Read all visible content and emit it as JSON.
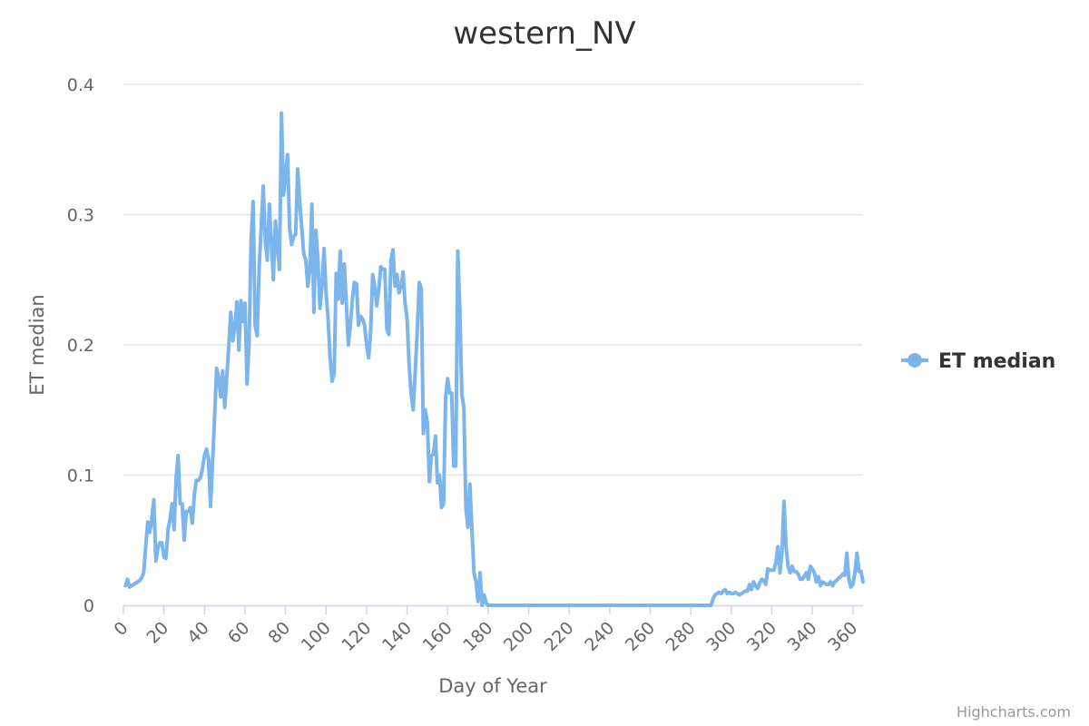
{
  "chart_data": {
    "type": "line",
    "title": "western_NV",
    "xlabel": "Day of Year",
    "ylabel": "ET median",
    "xlim": [
      0,
      365
    ],
    "ylim": [
      0,
      0.4
    ],
    "x_ticks": [
      0,
      20,
      40,
      60,
      80,
      100,
      120,
      140,
      160,
      180,
      200,
      220,
      240,
      260,
      280,
      300,
      320,
      340,
      360
    ],
    "y_ticks": [
      0,
      0.1,
      0.2,
      0.3,
      0.4
    ],
    "y_tick_labels": [
      "0",
      "0.1",
      "0.2",
      "0.3",
      "0.4"
    ],
    "grid": "horizontal",
    "legend": "right",
    "credits": "Highcharts.com",
    "color": "#7cb5ec",
    "series": [
      {
        "name": "ET median",
        "points": [
          [
            1,
            0.015
          ],
          [
            2,
            0.02
          ],
          [
            3,
            0.014
          ],
          [
            4,
            0.015
          ],
          [
            5,
            0.016
          ],
          [
            6,
            0.017
          ],
          [
            7,
            0.018
          ],
          [
            8,
            0.019
          ],
          [
            9,
            0.021
          ],
          [
            10,
            0.025
          ],
          [
            11,
            0.045
          ],
          [
            12,
            0.064
          ],
          [
            13,
            0.056
          ],
          [
            14,
            0.066
          ],
          [
            15,
            0.081
          ],
          [
            16,
            0.034
          ],
          [
            17,
            0.044
          ],
          [
            18,
            0.048
          ],
          [
            19,
            0.048
          ],
          [
            20,
            0.037
          ],
          [
            21,
            0.036
          ],
          [
            22,
            0.058
          ],
          [
            23,
            0.066
          ],
          [
            24,
            0.078
          ],
          [
            25,
            0.058
          ],
          [
            26,
            0.098
          ],
          [
            27,
            0.115
          ],
          [
            28,
            0.078
          ],
          [
            29,
            0.078
          ],
          [
            30,
            0.05
          ],
          [
            31,
            0.072
          ],
          [
            32,
            0.072
          ],
          [
            33,
            0.075
          ],
          [
            34,
            0.063
          ],
          [
            35,
            0.085
          ],
          [
            36,
            0.096
          ],
          [
            37,
            0.096
          ],
          [
            38,
            0.098
          ],
          [
            39,
            0.105
          ],
          [
            40,
            0.115
          ],
          [
            41,
            0.12
          ],
          [
            42,
            0.112
          ],
          [
            43,
            0.076
          ],
          [
            44,
            0.11
          ],
          [
            45,
            0.145
          ],
          [
            46,
            0.182
          ],
          [
            47,
            0.175
          ],
          [
            48,
            0.16
          ],
          [
            49,
            0.18
          ],
          [
            50,
            0.152
          ],
          [
            51,
            0.175
          ],
          [
            52,
            0.2
          ],
          [
            53,
            0.225
          ],
          [
            54,
            0.203
          ],
          [
            55,
            0.215
          ],
          [
            56,
            0.233
          ],
          [
            57,
            0.196
          ],
          [
            58,
            0.234
          ],
          [
            59,
            0.218
          ],
          [
            60,
            0.232
          ],
          [
            61,
            0.17
          ],
          [
            62,
            0.2
          ],
          [
            63,
            0.28
          ],
          [
            64,
            0.31
          ],
          [
            65,
            0.215
          ],
          [
            66,
            0.207
          ],
          [
            67,
            0.26
          ],
          [
            68,
            0.29
          ],
          [
            69,
            0.322
          ],
          [
            70,
            0.28
          ],
          [
            71,
            0.265
          ],
          [
            72,
            0.308
          ],
          [
            73,
            0.28
          ],
          [
            74,
            0.25
          ],
          [
            75,
            0.295
          ],
          [
            76,
            0.275
          ],
          [
            77,
            0.258
          ],
          [
            78,
            0.378
          ],
          [
            79,
            0.315
          ],
          [
            80,
            0.33
          ],
          [
            81,
            0.346
          ],
          [
            82,
            0.29
          ],
          [
            83,
            0.277
          ],
          [
            84,
            0.283
          ],
          [
            85,
            0.285
          ],
          [
            86,
            0.335
          ],
          [
            87,
            0.31
          ],
          [
            88,
            0.29
          ],
          [
            89,
            0.27
          ],
          [
            90,
            0.265
          ],
          [
            91,
            0.245
          ],
          [
            92,
            0.258
          ],
          [
            93,
            0.308
          ],
          [
            94,
            0.225
          ],
          [
            95,
            0.288
          ],
          [
            96,
            0.265
          ],
          [
            97,
            0.228
          ],
          [
            98,
            0.245
          ],
          [
            99,
            0.274
          ],
          [
            100,
            0.24
          ],
          [
            101,
            0.22
          ],
          [
            102,
            0.19
          ],
          [
            103,
            0.172
          ],
          [
            104,
            0.178
          ],
          [
            105,
            0.255
          ],
          [
            106,
            0.235
          ],
          [
            107,
            0.272
          ],
          [
            108,
            0.232
          ],
          [
            109,
            0.262
          ],
          [
            110,
            0.232
          ],
          [
            111,
            0.2
          ],
          [
            112,
            0.215
          ],
          [
            113,
            0.235
          ],
          [
            114,
            0.248
          ],
          [
            115,
            0.247
          ],
          [
            116,
            0.215
          ],
          [
            117,
            0.222
          ],
          [
            118,
            0.22
          ],
          [
            119,
            0.215
          ],
          [
            120,
            0.2
          ],
          [
            121,
            0.19
          ],
          [
            122,
            0.21
          ],
          [
            123,
            0.254
          ],
          [
            124,
            0.245
          ],
          [
            125,
            0.23
          ],
          [
            126,
            0.242
          ],
          [
            127,
            0.26
          ],
          [
            128,
            0.258
          ],
          [
            129,
            0.258
          ],
          [
            130,
            0.212
          ],
          [
            131,
            0.208
          ],
          [
            132,
            0.265
          ],
          [
            133,
            0.273
          ],
          [
            134,
            0.245
          ],
          [
            135,
            0.254
          ],
          [
            136,
            0.24
          ],
          [
            137,
            0.245
          ],
          [
            138,
            0.256
          ],
          [
            139,
            0.232
          ],
          [
            140,
            0.22
          ],
          [
            141,
            0.185
          ],
          [
            142,
            0.162
          ],
          [
            143,
            0.15
          ],
          [
            144,
            0.18
          ],
          [
            145,
            0.21
          ],
          [
            146,
            0.248
          ],
          [
            147,
            0.243
          ],
          [
            148,
            0.132
          ],
          [
            149,
            0.15
          ],
          [
            150,
            0.14
          ],
          [
            151,
            0.095
          ],
          [
            152,
            0.115
          ],
          [
            153,
            0.116
          ],
          [
            154,
            0.13
          ],
          [
            155,
            0.094
          ],
          [
            156,
            0.1
          ],
          [
            157,
            0.075
          ],
          [
            158,
            0.078
          ],
          [
            159,
            0.16
          ],
          [
            160,
            0.174
          ],
          [
            161,
            0.163
          ],
          [
            162,
            0.163
          ],
          [
            163,
            0.107
          ],
          [
            164,
            0.107
          ],
          [
            165,
            0.272
          ],
          [
            166,
            0.228
          ],
          [
            167,
            0.162
          ],
          [
            168,
            0.152
          ],
          [
            169,
            0.075
          ],
          [
            170,
            0.06
          ],
          [
            171,
            0.093
          ],
          [
            172,
            0.058
          ],
          [
            173,
            0.025
          ],
          [
            174,
            0.018
          ],
          [
            175,
            0.003
          ],
          [
            176,
            0.025
          ],
          [
            177,
            0.0
          ],
          [
            178,
            0.008
          ],
          [
            179,
            0.002
          ],
          [
            180,
            0.0
          ],
          [
            185,
            0.0
          ],
          [
            190,
            0.0
          ],
          [
            200,
            0.0
          ],
          [
            210,
            0.0
          ],
          [
            220,
            0.0
          ],
          [
            230,
            0.0
          ],
          [
            240,
            0.0
          ],
          [
            250,
            0.0
          ],
          [
            260,
            0.0
          ],
          [
            270,
            0.0
          ],
          [
            280,
            0.0
          ],
          [
            290,
            0.0
          ],
          [
            291,
            0.005
          ],
          [
            292,
            0.008
          ],
          [
            293,
            0.009
          ],
          [
            294,
            0.01
          ],
          [
            295,
            0.009
          ],
          [
            296,
            0.011
          ],
          [
            297,
            0.012
          ],
          [
            298,
            0.009
          ],
          [
            299,
            0.01
          ],
          [
            300,
            0.009
          ],
          [
            301,
            0.009
          ],
          [
            302,
            0.01
          ],
          [
            303,
            0.009
          ],
          [
            304,
            0.008
          ],
          [
            305,
            0.009
          ],
          [
            306,
            0.01
          ],
          [
            307,
            0.011
          ],
          [
            308,
            0.011
          ],
          [
            309,
            0.016
          ],
          [
            310,
            0.012
          ],
          [
            311,
            0.018
          ],
          [
            312,
            0.015
          ],
          [
            313,
            0.013
          ],
          [
            314,
            0.017
          ],
          [
            315,
            0.02
          ],
          [
            316,
            0.019
          ],
          [
            317,
            0.016
          ],
          [
            318,
            0.028
          ],
          [
            319,
            0.027
          ],
          [
            320,
            0.027
          ],
          [
            321,
            0.027
          ],
          [
            322,
            0.033
          ],
          [
            323,
            0.045
          ],
          [
            324,
            0.025
          ],
          [
            325,
            0.04
          ],
          [
            326,
            0.08
          ],
          [
            327,
            0.045
          ],
          [
            328,
            0.03
          ],
          [
            329,
            0.025
          ],
          [
            330,
            0.03
          ],
          [
            331,
            0.026
          ],
          [
            332,
            0.026
          ],
          [
            333,
            0.024
          ],
          [
            334,
            0.02
          ],
          [
            335,
            0.02
          ],
          [
            336,
            0.022
          ],
          [
            337,
            0.025
          ],
          [
            338,
            0.02
          ],
          [
            339,
            0.03
          ],
          [
            340,
            0.028
          ],
          [
            341,
            0.025
          ],
          [
            342,
            0.018
          ],
          [
            343,
            0.022
          ],
          [
            344,
            0.015
          ],
          [
            345,
            0.018
          ],
          [
            346,
            0.017
          ],
          [
            347,
            0.016
          ],
          [
            348,
            0.016
          ],
          [
            349,
            0.018
          ],
          [
            350,
            0.015
          ],
          [
            351,
            0.018
          ],
          [
            352,
            0.019
          ],
          [
            353,
            0.021
          ],
          [
            354,
            0.022
          ],
          [
            355,
            0.024
          ],
          [
            356,
            0.023
          ],
          [
            357,
            0.04
          ],
          [
            358,
            0.02
          ],
          [
            359,
            0.014
          ],
          [
            360,
            0.016
          ],
          [
            361,
            0.025
          ],
          [
            362,
            0.04
          ],
          [
            363,
            0.026
          ],
          [
            364,
            0.026
          ],
          [
            365,
            0.018
          ]
        ]
      }
    ]
  }
}
